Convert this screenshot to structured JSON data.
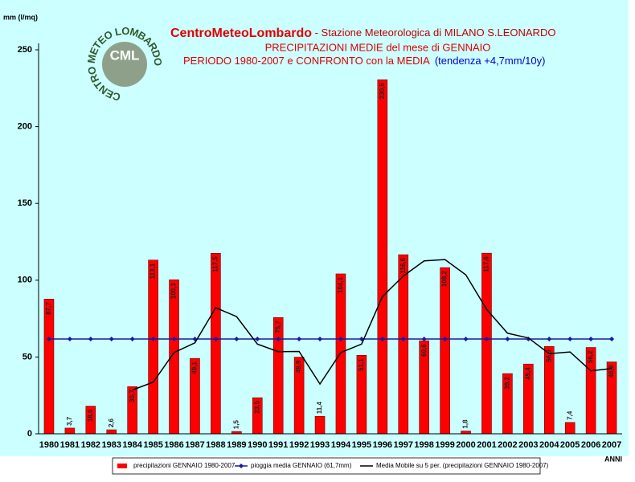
{
  "logo": {
    "ring_text": "CENTRO METEO LOMBARDO",
    "abbr": "CML"
  },
  "chart_data": {
    "type": "bar",
    "title": "CentroMeteoLombardo",
    "subtitle_1": " - Stazione Meteorologica di MILANO S.LEONARDO",
    "subtitle_2": "PRECIPITAZIONI MEDIE del mese di GENNAIO",
    "subtitle_3": "PERIODO 1980-2007 e CONFRONTO con la MEDIA",
    "annotation": "(tendenza +4,7mm/10y)",
    "y_label": "mm (l/mq)",
    "x_label": "ANNI",
    "categories": [
      "1980",
      "1981",
      "1982",
      "1983",
      "1984",
      "1985",
      "1986",
      "1987",
      "1988",
      "1989",
      "1990",
      "1991",
      "1992",
      "1993",
      "1994",
      "1995",
      "1996",
      "1997",
      "1998",
      "1999",
      "2000",
      "2001",
      "2002",
      "2003",
      "2004",
      "2005",
      "2006",
      "2007"
    ],
    "ylim": [
      0,
      250
    ],
    "yticks": [
      0,
      50,
      100,
      150,
      200,
      250
    ],
    "grid": false,
    "series": [
      {
        "name": "precipitazioni GENNAIO 1980-2007",
        "kind": "bar",
        "color": "#ff0000",
        "values": [
          87.7,
          3.7,
          18.0,
          2.6,
          30.7,
          113.1,
          100.3,
          49.1,
          117.5,
          1.5,
          23.5,
          75.7,
          49.9,
          11.4,
          104.1,
          51.1,
          230.5,
          116.6,
          60.6,
          108.2,
          1.8,
          117.6,
          39.2,
          45.4,
          56.9,
          7.4,
          56.2,
          46.8
        ],
        "value_labels": [
          "87,7",
          "3,7",
          "18,0",
          "2,6",
          "30,7",
          "113,1",
          "100,3",
          "49,1",
          "117,5",
          "1,5",
          "23,5",
          "75,7",
          "49,9",
          "11,4",
          "104,1",
          "51,1",
          "230,5",
          "116,6",
          "60,6",
          "108,2",
          "1,8",
          "117,6",
          "39,2",
          "45,4",
          "56,9",
          "7,4",
          "56,2",
          "46,8"
        ]
      },
      {
        "name": "pioggia media GENNAIO (61,7mm)",
        "kind": "line",
        "color": "#1a1aa0",
        "markers": true,
        "values": [
          61.7,
          61.7,
          61.7,
          61.7,
          61.7,
          61.7,
          61.7,
          61.7,
          61.7,
          61.7,
          61.7,
          61.7,
          61.7,
          61.7,
          61.7,
          61.7,
          61.7,
          61.7,
          61.7,
          61.7,
          61.7,
          61.7,
          61.7,
          61.7,
          61.7,
          61.7,
          61.7,
          61.7
        ]
      },
      {
        "name": "Media Mobile su 5 per. (precipitazioni GENNAIO 1980-2007)",
        "kind": "line",
        "color": "#000000",
        "markers": false,
        "values": [
          null,
          null,
          null,
          null,
          28.5,
          33.6,
          52.9,
          59.2,
          82.1,
          76.3,
          58.4,
          53.5,
          53.6,
          32.4,
          52.9,
          58.4,
          89.4,
          102.7,
          112.6,
          113.4,
          103.5,
          81.0,
          65.5,
          62.4,
          52.2,
          53.3,
          41.0,
          42.5
        ]
      }
    ]
  }
}
